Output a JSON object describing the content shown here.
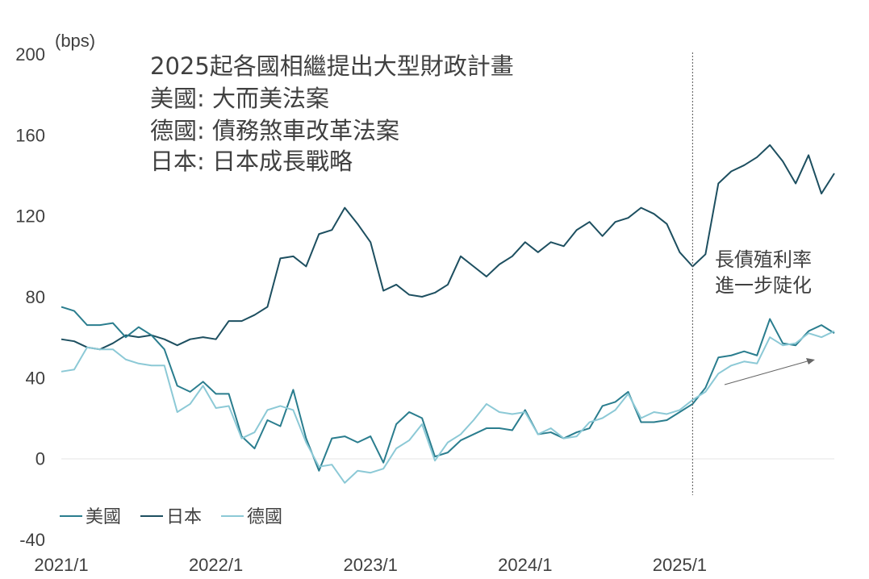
{
  "chart_data": {
    "type": "line",
    "unit_label": "(bps)",
    "ylim": [
      -40,
      200
    ],
    "y_ticks": [
      200,
      160,
      120,
      80,
      40,
      0,
      -40
    ],
    "x_ticks": [
      "2021/1",
      "2022/1",
      "2023/1",
      "2024/1",
      "2025/1"
    ],
    "x_start": "2021/1",
    "x_end": "2025/11",
    "grid": false,
    "vertical_marker": {
      "x_index": 49,
      "label": ""
    },
    "annotation_lines": [
      "2025起各國相繼提出大型財政計畫",
      "美國: 大而美法案",
      "德國: 債務煞車改革法案",
      "日本: 日本成長戰略"
    ],
    "note_lines": [
      "長債殖利率",
      "進一步陡化"
    ],
    "legend_position": "bottom-left",
    "series": [
      {
        "name": "美國",
        "color": "#2a7d8e",
        "values": [
          75,
          73,
          66,
          66,
          67,
          60,
          65,
          61,
          54,
          36,
          33,
          38,
          32,
          32,
          11,
          5,
          19,
          16,
          34,
          10,
          -6,
          10,
          11,
          8,
          11,
          -2,
          17,
          23,
          20,
          1,
          3,
          9,
          12,
          15,
          15,
          14,
          24,
          12,
          13,
          10,
          13,
          15,
          26,
          28,
          33,
          18,
          18,
          19,
          23,
          27,
          35,
          50,
          51,
          53,
          51,
          69,
          57,
          56,
          63,
          66,
          62
        ]
      },
      {
        "name": "日本",
        "color": "#1d4f60",
        "values": [
          59,
          58,
          55,
          54,
          57,
          61,
          60,
          61,
          59,
          56,
          59,
          60,
          59,
          68,
          68,
          71,
          75,
          99,
          100,
          95,
          111,
          113,
          124,
          116,
          107,
          83,
          86,
          81,
          80,
          82,
          86,
          100,
          95,
          90,
          96,
          100,
          107,
          102,
          107,
          105,
          113,
          117,
          110,
          117,
          119,
          124,
          121,
          116,
          102,
          95,
          101,
          136,
          142,
          145,
          149,
          155,
          147,
          136,
          150,
          131,
          141
        ]
      },
      {
        "name": "德國",
        "color": "#8cc9d6",
        "values": [
          43,
          44,
          55,
          54,
          54,
          49,
          47,
          46,
          46,
          23,
          27,
          36,
          25,
          26,
          10,
          13,
          24,
          26,
          24,
          8,
          -4,
          -3,
          -12,
          -6,
          -7,
          -5,
          5,
          9,
          17,
          -1,
          8,
          12,
          19,
          27,
          23,
          22,
          23,
          12,
          15,
          10,
          11,
          18,
          20,
          24,
          32,
          20,
          23,
          22,
          24,
          29,
          33,
          42,
          46,
          48,
          47,
          60,
          56,
          57,
          62,
          60,
          63
        ]
      }
    ]
  }
}
